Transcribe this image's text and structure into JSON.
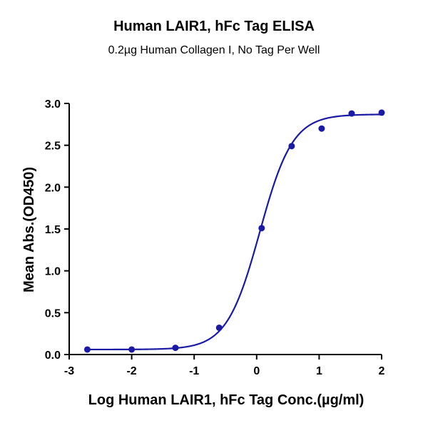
{
  "chart_data": {
    "type": "scatter",
    "title": "Human LAIR1, hFc Tag ELISA",
    "subtitle": "0.2µg Human Collagen I, No Tag Per Well",
    "xlabel": "Log Human LAIR1, hFc Tag Conc.(µg/ml)",
    "ylabel": "Mean Abs.(OD450)",
    "xlim": [
      -3,
      2
    ],
    "ylim": [
      0,
      3
    ],
    "x_ticks": [
      -3,
      -2,
      -1,
      0,
      1,
      2
    ],
    "y_ticks": [
      0.0,
      0.5,
      1.0,
      1.5,
      2.0,
      2.5,
      3.0
    ],
    "x_tick_labels": [
      "-3",
      "-2",
      "-1",
      "0",
      "1",
      "2"
    ],
    "y_tick_labels": [
      "0.0",
      "0.5",
      "1.0",
      "1.5",
      "2.0",
      "2.5",
      "3.0"
    ],
    "grid": false,
    "color": "#1a1aa6",
    "series": [
      {
        "points": [
          {
            "x": -2.71,
            "y": 0.06
          },
          {
            "x": -2.0,
            "y": 0.06
          },
          {
            "x": -1.3,
            "y": 0.08
          },
          {
            "x": -0.6,
            "y": 0.32
          },
          {
            "x": 0.08,
            "y": 1.51
          },
          {
            "x": 0.56,
            "y": 2.49
          },
          {
            "x": 1.04,
            "y": 2.7
          },
          {
            "x": 1.52,
            "y": 2.88
          },
          {
            "x": 2.0,
            "y": 2.89
          }
        ],
        "fit": {
          "model": "4PL",
          "bottom": 0.06,
          "top": 2.87,
          "logEC50": 0.05,
          "hill": 1.65
        }
      }
    ]
  }
}
